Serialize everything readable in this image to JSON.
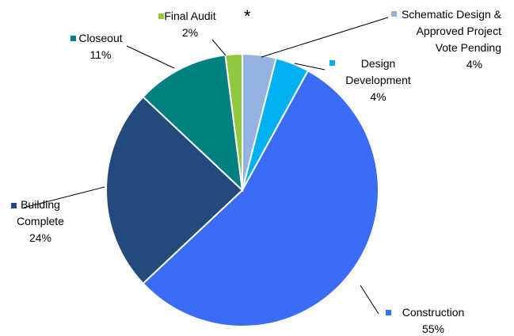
{
  "chart_data": {
    "type": "pie",
    "annotation": "*",
    "categories": [
      "Schematic Design & Approved Project Vote Pending",
      "Design Development",
      "Construction",
      "Building Complete",
      "Closeout",
      "Final Audit"
    ],
    "values": [
      4,
      4,
      55,
      24,
      11,
      2
    ],
    "value_labels": [
      "4%",
      "4%",
      "55%",
      "24%",
      "11%",
      "2%"
    ],
    "colors": [
      "#95b3e0",
      "#00b0f0",
      "#3a6cf4",
      "#234a7c",
      "#008080",
      "#92c83e"
    ]
  }
}
